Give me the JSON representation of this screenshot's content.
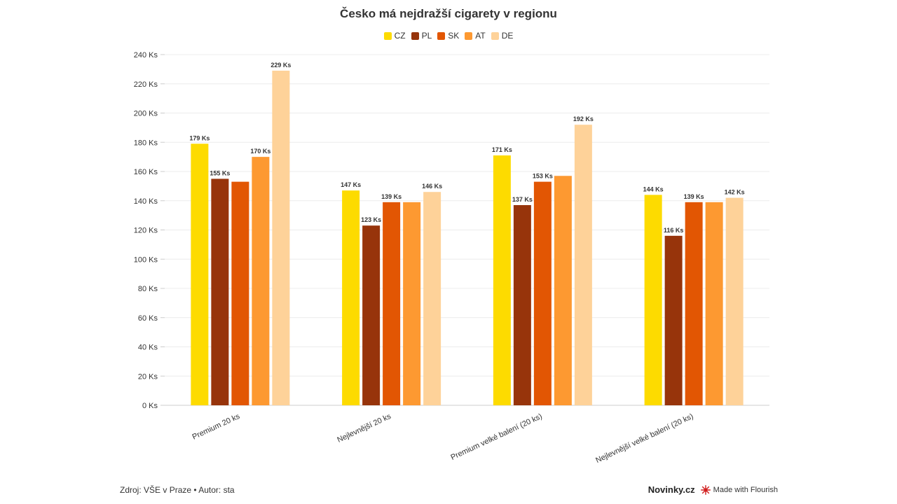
{
  "chart_data": {
    "type": "bar",
    "title": "Česko má nejdražší cigarety v regionu",
    "categories": [
      "Premium 20 ks",
      "Nejlevnější 20 ks",
      "Premium velké balení (20 ks)",
      "Nejlevnější velké balení (20 ks)"
    ],
    "series": [
      {
        "name": "CZ",
        "color": "#fddb00",
        "values": [
          179,
          147,
          171,
          144
        ],
        "labels": [
          "179 Ks",
          "147 Ks",
          "171 Ks",
          "144 Ks"
        ]
      },
      {
        "name": "PL",
        "color": "#97340b",
        "values": [
          155,
          123,
          137,
          116
        ],
        "labels": [
          "155 Ks",
          "123 Ks",
          "137 Ks",
          "116 Ks"
        ]
      },
      {
        "name": "SK",
        "color": "#e25603",
        "values": [
          153,
          139,
          153,
          139
        ],
        "labels": [
          "",
          "139 Ks",
          "153 Ks",
          "139 Ks"
        ]
      },
      {
        "name": "AT",
        "color": "#fd9931",
        "values": [
          170,
          139,
          157,
          139
        ],
        "labels": [
          "170 Ks",
          "",
          "",
          ""
        ]
      },
      {
        "name": "DE",
        "color": "#fed299",
        "values": [
          229,
          146,
          192,
          142
        ],
        "labels": [
          "229 Ks",
          "146 Ks",
          "192 Ks",
          "142 Ks"
        ]
      }
    ],
    "ylim": [
      0,
      240
    ],
    "yticks": [
      0,
      20,
      40,
      60,
      80,
      100,
      120,
      140,
      160,
      180,
      200,
      220,
      240
    ],
    "ytick_suffix": " Ks",
    "grid": true,
    "legend": "top-center"
  },
  "footer": {
    "source": "Zdroj: VŠE v Praze • Autor: sta",
    "brand": "Novinky.cz",
    "made_with": "Made with Flourish"
  }
}
